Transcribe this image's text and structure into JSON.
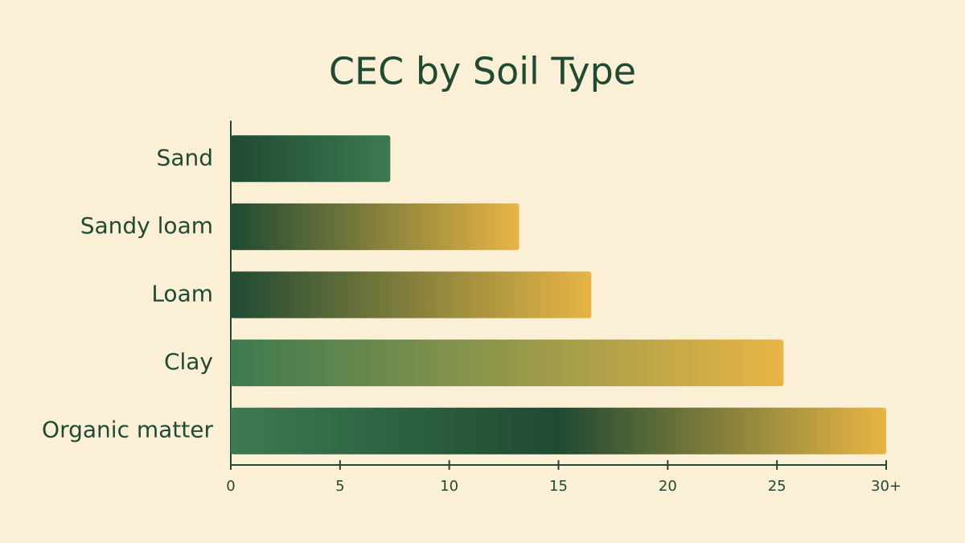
{
  "chart_data": {
    "type": "hbar",
    "title": "CEC by Soil Type",
    "categories": [
      "Sand",
      "Sandy loam",
      "Loam",
      "Clay",
      "Organic matter"
    ],
    "values": [
      7.3,
      13.2,
      16.5,
      25.3,
      30
    ],
    "colors": [
      [
        "#1f4a33",
        "#3d7a50"
      ],
      [
        "#1f4a33",
        "#e8b545"
      ],
      [
        "#1f4a33",
        "#e8b545"
      ],
      [
        "#3d7a50",
        "#e8b545"
      ],
      [
        "#3d7a50",
        "#1f4a33",
        "#e8b545"
      ]
    ],
    "xlim": [
      0,
      30
    ],
    "xticks": [
      0,
      5,
      10,
      15,
      20,
      25,
      {
        "value": 30,
        "label": "30+"
      }
    ]
  }
}
